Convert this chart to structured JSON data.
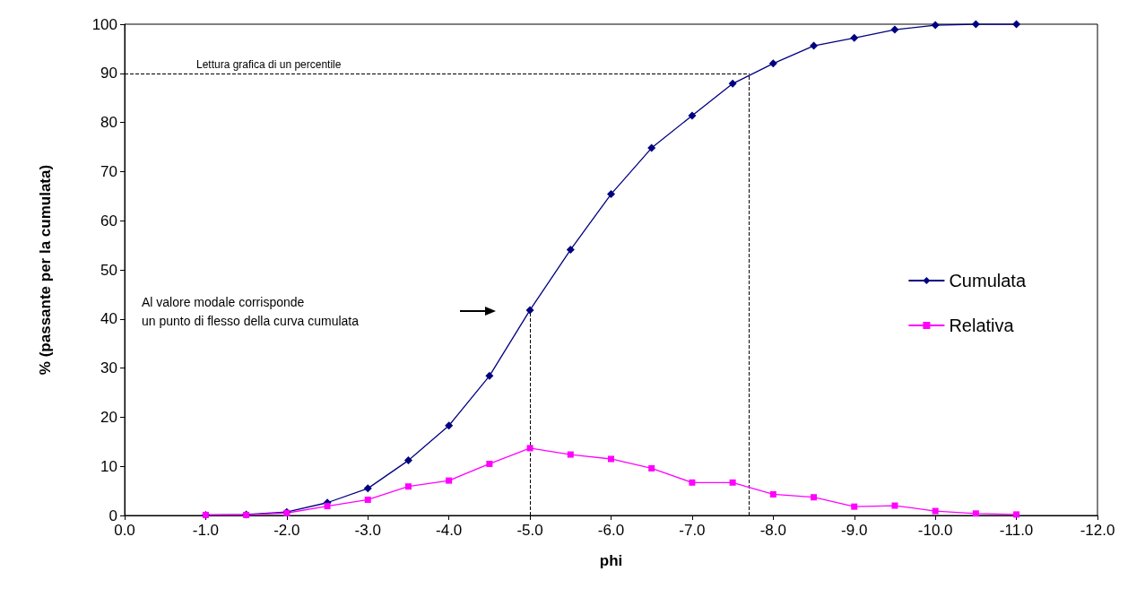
{
  "chart_data": {
    "type": "line",
    "xlabel": "phi",
    "ylabel": "% (passante per la cumulata)",
    "x": [
      -1,
      -1.5,
      -2,
      -2.5,
      -3,
      -3.5,
      -4,
      -4.5,
      -5,
      -5.5,
      -6,
      -6.5,
      -7,
      -7.5,
      -8,
      -8.5,
      -9,
      -9.5,
      -10,
      -10.5,
      -11
    ],
    "series": [
      {
        "name": "Cumulata",
        "color": "#000080",
        "marker": "diamond",
        "values": [
          0.1,
          0.2,
          0.7,
          2.6,
          5.5,
          11.2,
          18.3,
          28.4,
          41.8,
          54.1,
          65.4,
          74.8,
          81.4,
          87.9,
          92.0,
          95.6,
          97.2,
          98.9,
          99.8,
          100,
          100
        ]
      },
      {
        "name": "Relativa",
        "color": "#ff00ff",
        "marker": "square",
        "values": [
          0.1,
          0.1,
          0.5,
          1.9,
          3.2,
          5.9,
          7.1,
          10.5,
          13.7,
          12.4,
          11.5,
          9.6,
          6.7,
          6.7,
          4.3,
          3.7,
          1.8,
          2.0,
          0.9,
          0.4,
          0.2
        ]
      }
    ],
    "xlim": [
      0,
      -12
    ],
    "xticks": [
      {
        "value": 0,
        "label": "0.0"
      },
      {
        "value": -1,
        "label": "-1.0"
      },
      {
        "value": -2,
        "label": "-2.0"
      },
      {
        "value": -3,
        "label": "-3.0"
      },
      {
        "value": -4,
        "label": "-4.0"
      },
      {
        "value": -5,
        "label": "-5.0"
      },
      {
        "value": -6,
        "label": "-6.0"
      },
      {
        "value": -7,
        "label": "-7.0"
      },
      {
        "value": -8,
        "label": "-8.0"
      },
      {
        "value": -9,
        "label": "-9.0"
      },
      {
        "value": -10,
        "label": "-10.0"
      },
      {
        "value": -11,
        "label": "-11.0"
      },
      {
        "value": -12,
        "label": "-12.0"
      }
    ],
    "ylim": [
      0,
      100
    ],
    "yticks": [
      0,
      10,
      20,
      30,
      40,
      50,
      60,
      70,
      80,
      90,
      100
    ],
    "ref_lines": [
      {
        "axis": "y",
        "value": 90,
        "label": "Lettura grafica di un percentile",
        "line_style": "dashed",
        "color": "#000000"
      },
      {
        "axis": "x",
        "value": -7.7,
        "label": null,
        "line_style": "dashed",
        "color": "#000000"
      },
      {
        "axis": "x",
        "value": -5,
        "label": null,
        "line_style": "dashed",
        "color": "#000000"
      }
    ],
    "annotations": [
      "Al valore modale corrisponde\nun punto di flesso della curva cumulata"
    ],
    "legend": "right",
    "grid": false
  }
}
